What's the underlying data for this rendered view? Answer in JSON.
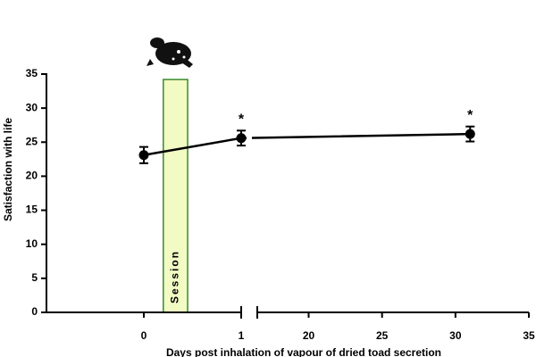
{
  "chart_data": {
    "type": "line",
    "ylabel": "Satisfaction with life",
    "xlabel": "Days post inhalation of vapour of dried toad secretion",
    "ylim": [
      0,
      35
    ],
    "yticks": [
      0,
      5,
      10,
      15,
      20,
      25,
      30,
      35
    ],
    "xaxes": [
      {
        "xlim": [
          -1,
          1
        ],
        "xticks": [
          0,
          1
        ]
      },
      {
        "xlim": [
          16.5,
          35
        ],
        "xticks": [
          20,
          25,
          30,
          35
        ]
      }
    ],
    "x": [
      0,
      1,
      31
    ],
    "series": [
      {
        "color": "#000000",
        "values": [
          23.1,
          25.6,
          26.2
        ],
        "errors": [
          1.2,
          1.1,
          1.1
        ]
      }
    ],
    "significance": [
      {
        "label": "*",
        "point": 1
      },
      {
        "label": "*",
        "point": 2
      }
    ],
    "session": {
      "label": "Session",
      "x": [
        0.2,
        0.45
      ],
      "top": 34.2,
      "color": "#f2fbc4",
      "edge": "#3a8a2a"
    }
  }
}
